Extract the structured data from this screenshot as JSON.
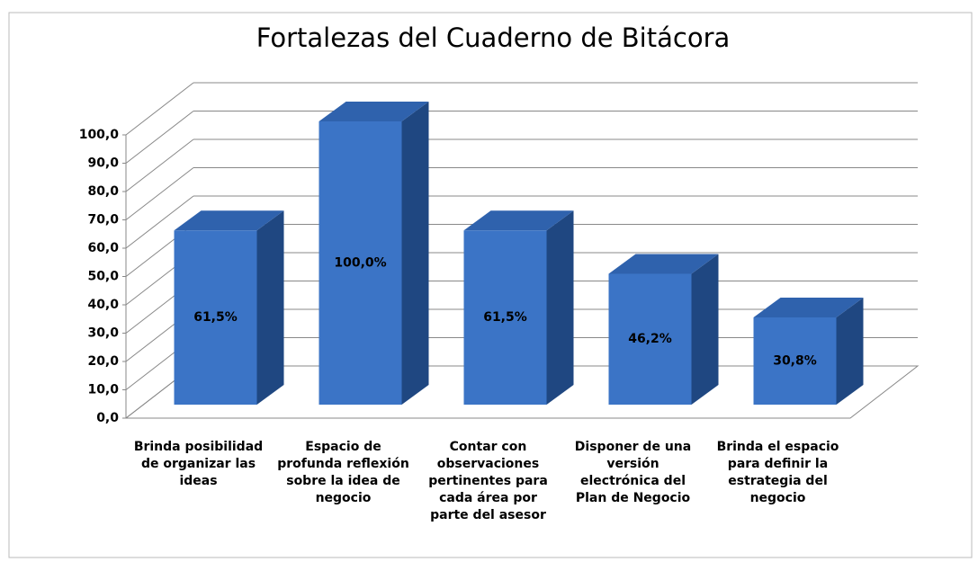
{
  "chart_data": {
    "type": "bar3d",
    "title": "Fortalezas del Cuaderno de Bitácora",
    "categories": [
      "Brinda posibilidad de organizar las ideas",
      "Espacio de profunda reflexión sobre la idea de negocio",
      "Contar con observaciones pertinentes para cada área por parte del asesor",
      "Disponer de una versión electrónica del Plan de Negocio",
      "Brinda el espacio para definir la estrategia del negocio"
    ],
    "values": [
      61.5,
      100,
      61.5,
      46.2,
      30.8
    ],
    "value_labels": [
      "61,5%",
      "100,0%",
      "61,5%",
      "46,2%",
      "30,8%"
    ],
    "color": "#3b74c6",
    "ylim": [
      0,
      100
    ],
    "yticks": [
      {
        "value": 0,
        "label": "0,0"
      },
      {
        "value": 10,
        "label": "10,0"
      },
      {
        "value": 20,
        "label": "20,0"
      },
      {
        "value": 30,
        "label": "30,0"
      },
      {
        "value": 40,
        "label": "40,0"
      },
      {
        "value": 50,
        "label": "50,0"
      },
      {
        "value": 60,
        "label": "60,0"
      },
      {
        "value": 70,
        "label": "70,0"
      },
      {
        "value": 80,
        "label": "80,0"
      },
      {
        "value": 90,
        "label": "90,0"
      },
      {
        "value": 100,
        "label": "100,0"
      }
    ],
    "grid": true
  }
}
